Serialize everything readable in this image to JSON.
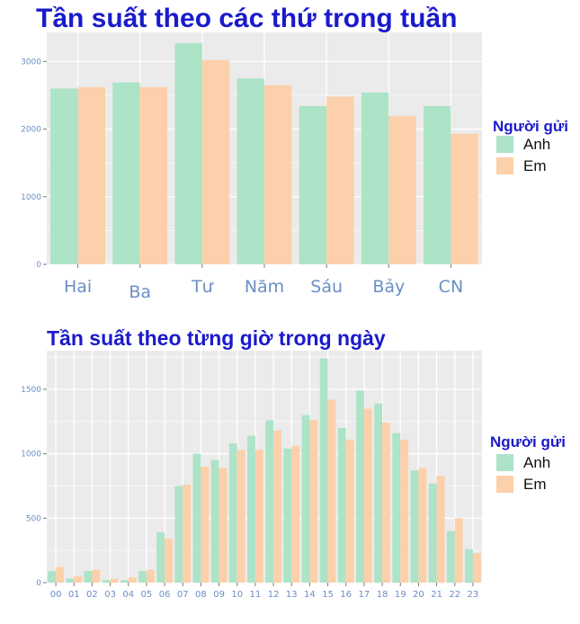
{
  "colors": {
    "anh": "#ade3c7",
    "em": "#fcd0aa",
    "panel": "#ebebeb",
    "grid": "#ffffff"
  },
  "chart_data": [
    {
      "type": "bar",
      "title": "Tần suất theo các thứ trong tuần",
      "xlabel": "",
      "ylabel": "",
      "categories": [
        "Hai",
        "Ba",
        "Tư",
        "Năm",
        "Sáu",
        "Bảy",
        "CN"
      ],
      "series": [
        {
          "name": "Anh",
          "color": "#ade3c7",
          "values": [
            2600,
            2690,
            3270,
            2750,
            2340,
            2540,
            2340
          ]
        },
        {
          "name": "Em",
          "color": "#fcd0aa",
          "values": [
            2620,
            2620,
            3020,
            2650,
            2480,
            2190,
            1930
          ]
        }
      ],
      "yticks": [
        0,
        1000,
        2000,
        3000
      ],
      "ytick_labels": [
        "0",
        "1000",
        "2000",
        "3000"
      ],
      "ylim": [
        0,
        3430
      ],
      "grid": true,
      "legend": {
        "title": "Người gửi",
        "placement": "right"
      }
    },
    {
      "type": "bar",
      "title": "Tần suất theo từng giờ trong ngày",
      "xlabel": "",
      "ylabel": "",
      "categories": [
        "00",
        "01",
        "02",
        "03",
        "04",
        "05",
        "06",
        "07",
        "08",
        "09",
        "10",
        "11",
        "12",
        "13",
        "14",
        "15",
        "16",
        "17",
        "18",
        "19",
        "20",
        "21",
        "22",
        "23"
      ],
      "series": [
        {
          "name": "Anh",
          "color": "#ade3c7",
          "values": [
            90,
            30,
            90,
            20,
            20,
            90,
            390,
            750,
            1000,
            950,
            1080,
            1140,
            1260,
            1040,
            1300,
            1740,
            1200,
            1490,
            1390,
            1160,
            870,
            770,
            400,
            260
          ]
        },
        {
          "name": "Em",
          "color": "#fcd0aa",
          "values": [
            120,
            50,
            100,
            30,
            40,
            100,
            340,
            760,
            900,
            890,
            1030,
            1030,
            1180,
            1060,
            1260,
            1420,
            1110,
            1350,
            1240,
            1110,
            890,
            830,
            500,
            230
          ]
        }
      ],
      "yticks": [
        0,
        500,
        1000,
        1500
      ],
      "ytick_labels": [
        "0",
        "500",
        "1000",
        "1500"
      ],
      "ylim": [
        0,
        1800
      ],
      "grid": true,
      "legend": {
        "title": "Người gửi",
        "placement": "right"
      }
    }
  ]
}
